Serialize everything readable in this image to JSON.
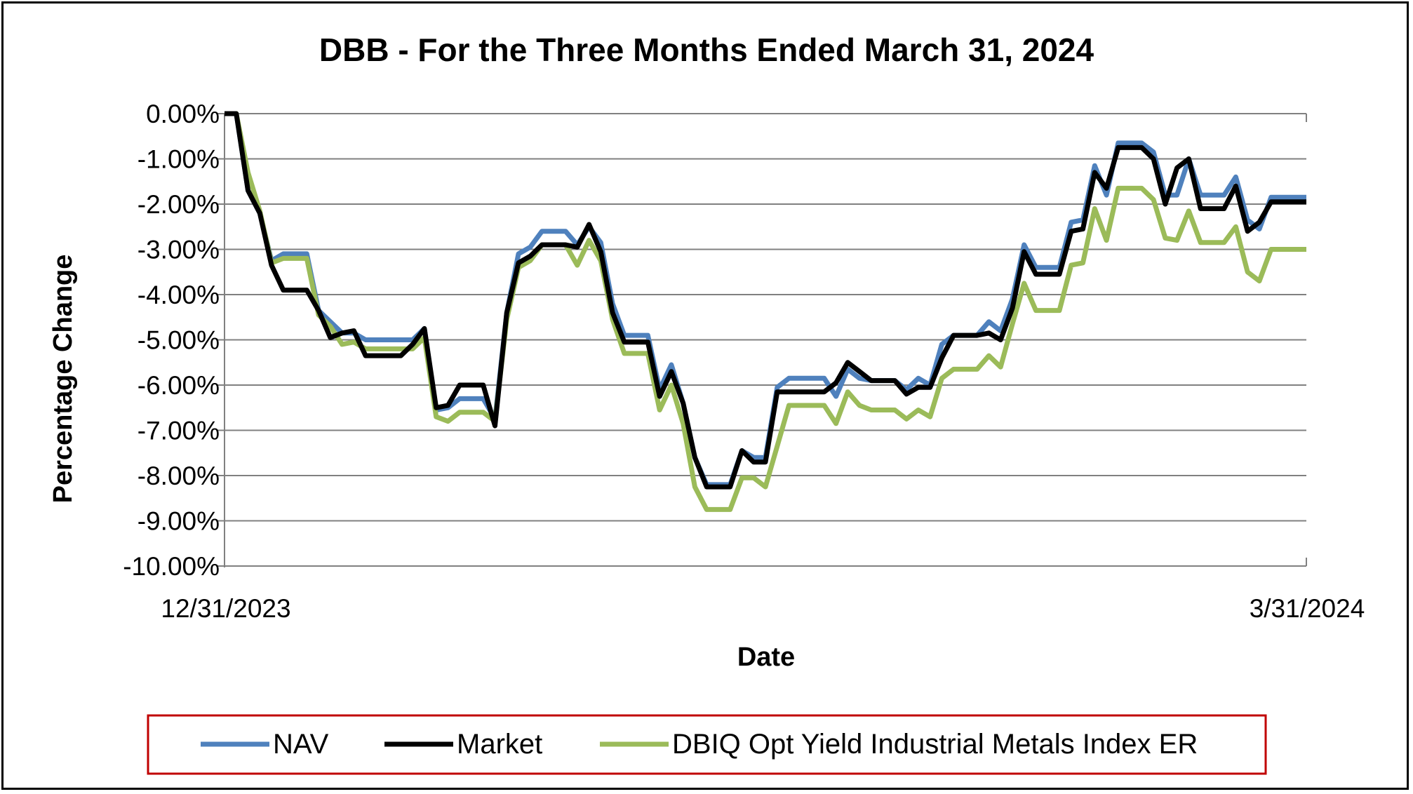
{
  "chart_data": {
    "type": "line",
    "title": "DBB - For the Three Months Ended March 31, 2024",
    "xlabel": "Date",
    "ylabel": "Percentage Change",
    "x_tick_labels": [
      "12/31/2023",
      "3/31/2024"
    ],
    "ylim": [
      -10,
      0
    ],
    "y_tick_step": 1,
    "y_tick_labels": [
      "0.00%",
      "-1.00%",
      "-2.00%",
      "-3.00%",
      "-4.00%",
      "-5.00%",
      "-6.00%",
      "-7.00%",
      "-8.00%",
      "-9.00%",
      "-10.00%"
    ],
    "grid": true,
    "legend_position": "bottom",
    "colors": {
      "NAV": "#4f81bd",
      "Market": "#000000",
      "Index": "#9bbb59",
      "legend_border": "#c00000"
    },
    "series": [
      {
        "name": "NAV",
        "values": [
          0,
          0,
          -1.7,
          -2.2,
          -3.25,
          -3.1,
          -3.1,
          -3.1,
          -4.35,
          -4.6,
          -4.85,
          -4.85,
          -5.0,
          -5.0,
          -5.0,
          -5.0,
          -5.0,
          -4.75,
          -6.55,
          -6.5,
          -6.3,
          -6.3,
          -6.3,
          -6.75,
          -4.4,
          -3.1,
          -2.95,
          -2.6,
          -2.6,
          -2.6,
          -2.9,
          -2.5,
          -2.85,
          -4.2,
          -4.9,
          -4.9,
          -4.9,
          -6.1,
          -5.55,
          -6.4,
          -7.6,
          -8.2,
          -8.2,
          -8.2,
          -7.45,
          -7.6,
          -7.6,
          -6.05,
          -5.85,
          -5.85,
          -5.85,
          -5.85,
          -6.25,
          -5.65,
          -5.85,
          -5.9,
          -5.9,
          -5.9,
          -6.1,
          -5.85,
          -6.0,
          -5.1,
          -4.9,
          -4.9,
          -4.9,
          -4.6,
          -4.8,
          -4.1,
          -2.9,
          -3.4,
          -3.4,
          -3.4,
          -2.4,
          -2.35,
          -1.15,
          -1.8,
          -0.65,
          -0.65,
          -0.65,
          -0.85,
          -1.8,
          -1.8,
          -1.0,
          -1.8,
          -1.8,
          -1.8,
          -1.4,
          -2.35,
          -2.55,
          -1.85,
          -1.85,
          -1.85,
          -1.85
        ]
      },
      {
        "name": "Market",
        "values": [
          0,
          0,
          -1.7,
          -2.2,
          -3.35,
          -3.9,
          -3.9,
          -3.9,
          -4.35,
          -4.95,
          -4.85,
          -4.8,
          -5.35,
          -5.35,
          -5.35,
          -5.35,
          -5.1,
          -4.75,
          -6.5,
          -6.45,
          -6.0,
          -6.0,
          -6.0,
          -6.9,
          -4.4,
          -3.3,
          -3.15,
          -2.9,
          -2.9,
          -2.9,
          -2.95,
          -2.45,
          -3.05,
          -4.4,
          -5.05,
          -5.05,
          -5.05,
          -6.25,
          -5.7,
          -6.4,
          -7.6,
          -8.25,
          -8.25,
          -8.25,
          -7.45,
          -7.7,
          -7.7,
          -6.15,
          -6.15,
          -6.15,
          -6.15,
          -6.15,
          -5.95,
          -5.5,
          -5.7,
          -5.9,
          -5.9,
          -5.9,
          -6.2,
          -6.05,
          -6.05,
          -5.4,
          -4.9,
          -4.9,
          -4.9,
          -4.85,
          -5.0,
          -4.3,
          -3.05,
          -3.55,
          -3.55,
          -3.55,
          -2.6,
          -2.55,
          -1.3,
          -1.65,
          -0.75,
          -0.75,
          -0.75,
          -1.0,
          -2.0,
          -1.2,
          -1.0,
          -2.1,
          -2.1,
          -2.1,
          -1.6,
          -2.6,
          -2.4,
          -1.95,
          -1.95,
          -1.95,
          -1.95
        ]
      },
      {
        "name": "DBIQ Opt Yield Industrial Metals Index ER",
        "values": [
          0,
          0,
          -1.3,
          -2.15,
          -3.3,
          -3.2,
          -3.2,
          -3.2,
          -4.45,
          -4.7,
          -5.1,
          -5.05,
          -5.2,
          -5.2,
          -5.2,
          -5.2,
          -5.2,
          -4.95,
          -6.7,
          -6.8,
          -6.6,
          -6.6,
          -6.6,
          -6.8,
          -4.55,
          -3.4,
          -3.25,
          -2.9,
          -2.9,
          -2.9,
          -3.35,
          -2.8,
          -3.25,
          -4.55,
          -5.3,
          -5.3,
          -5.3,
          -6.55,
          -6.0,
          -6.85,
          -8.25,
          -8.75,
          -8.75,
          -8.75,
          -8.05,
          -8.05,
          -8.25,
          -7.35,
          -6.45,
          -6.45,
          -6.45,
          -6.45,
          -6.85,
          -6.15,
          -6.45,
          -6.55,
          -6.55,
          -6.55,
          -6.75,
          -6.55,
          -6.7,
          -5.85,
          -5.65,
          -5.65,
          -5.65,
          -5.35,
          -5.6,
          -4.65,
          -3.75,
          -4.35,
          -4.35,
          -4.35,
          -3.35,
          -3.3,
          -2.1,
          -2.8,
          -1.65,
          -1.65,
          -1.65,
          -1.9,
          -2.75,
          -2.8,
          -2.15,
          -2.85,
          -2.85,
          -2.85,
          -2.5,
          -3.5,
          -3.7,
          -3.0,
          -3.0,
          -3.0,
          -3.0
        ]
      }
    ]
  }
}
